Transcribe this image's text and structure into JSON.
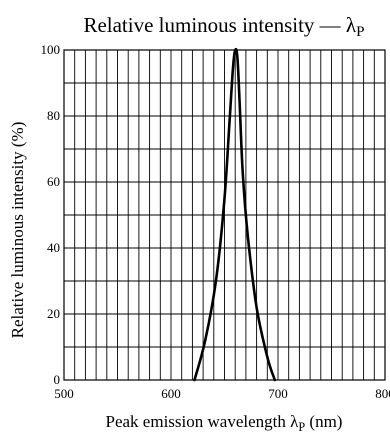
{
  "chart_data": {
    "type": "line",
    "title": "Relative luminous intensity — λP",
    "xlabel": "Peak emission wavelength λP (nm)",
    "ylabel": "Relative luminous intensity (%)",
    "xlim": [
      500,
      800
    ],
    "ylim": [
      0,
      100
    ],
    "x_ticks": [
      "500",
      "600",
      "700",
      "800"
    ],
    "y_ticks": [
      "0",
      "20",
      "40",
      "60",
      "80",
      "100"
    ],
    "grid": true,
    "series": [
      {
        "x": [
          622,
          632,
          642,
          650,
          655,
          658,
          660,
          662,
          664,
          667,
          672,
          680,
          690,
          697
        ],
        "values": [
          0,
          12,
          30,
          55,
          80,
          95,
          100,
          98,
          85,
          63,
          43,
          22,
          7,
          0
        ]
      }
    ]
  }
}
